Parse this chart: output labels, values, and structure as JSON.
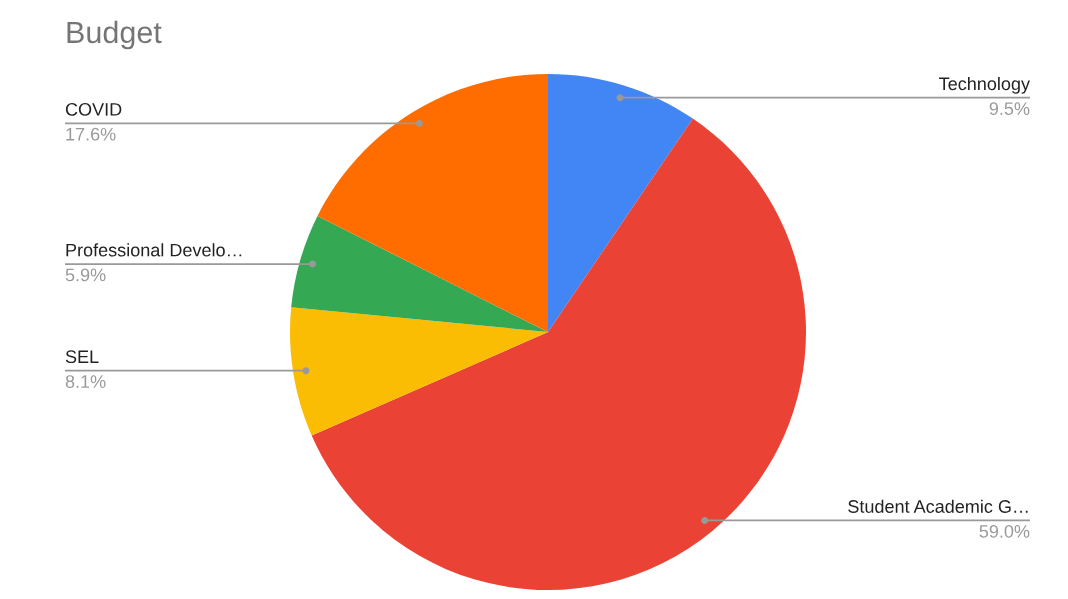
{
  "chart_data": {
    "type": "pie",
    "title": "Budget",
    "categories": [
      "Technology",
      "Student Academic G…",
      "SEL",
      "Professional Develo…",
      "COVID"
    ],
    "values": [
      9.5,
      59.0,
      8.1,
      5.9,
      17.6
    ],
    "colors": [
      "#4285f4",
      "#ea4335",
      "#fbbc04",
      "#34a853",
      "#ff6d01"
    ],
    "value_labels": [
      "9.5%",
      "59.0%",
      "8.1%",
      "5.9%",
      "17.6%"
    ],
    "legend": false
  }
}
